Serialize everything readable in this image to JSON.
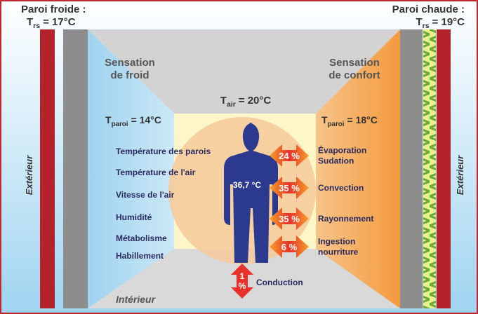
{
  "cold_wall": {
    "title": "Paroi froide :",
    "temp": {
      "symbol": "T",
      "sub": "rs",
      "rest": "= 17°C"
    }
  },
  "warm_wall": {
    "title": "Paroi chaude :",
    "temp": {
      "symbol": "T",
      "sub": "rs",
      "rest": "= 19°C"
    }
  },
  "cold_sensation": [
    "Sensation",
    "de froid"
  ],
  "warm_sensation": [
    "Sensation",
    "de confort"
  ],
  "air_temp": {
    "symbol": "T",
    "sub": "air",
    "rest": "= 20°C"
  },
  "left_wall_temp": {
    "symbol": "T",
    "sub": "paroi",
    "rest": "= 14°C"
  },
  "right_wall_temp": {
    "symbol": "T",
    "sub": "paroi",
    "rest": "= 18°C"
  },
  "outside_left": "Extérieur",
  "outside_right": "Extérieur",
  "inside": "Intérieur",
  "factors": [
    "Température des parois",
    "Température de l'air",
    "Vitesse de l'air",
    "Humidité",
    "Métabolisme",
    "Habillement"
  ],
  "body_temp": "36,7 °C",
  "exchanges": [
    {
      "value": "24 %",
      "label": [
        "Évaporation",
        "Sudation"
      ]
    },
    {
      "value": "35 %",
      "label": [
        "Convection"
      ]
    },
    {
      "value": "35 %",
      "label": [
        "Rayonnement"
      ]
    },
    {
      "value": "6 %",
      "label": [
        "Ingestion",
        "nourriture"
      ]
    }
  ],
  "conduction": {
    "value": [
      "1",
      "%"
    ],
    "label": "Conduction"
  }
}
